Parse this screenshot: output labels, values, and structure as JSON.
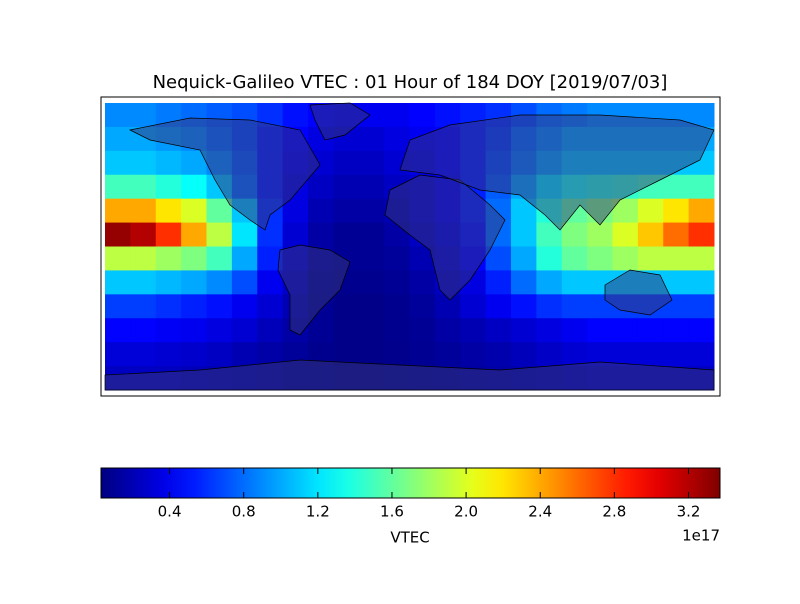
{
  "chart_data": {
    "type": "heatmap",
    "title": "Nequick-Galileo VTEC : 01 Hour of 184 DOY [2019/07/03]",
    "colorbar_label": "VTEC",
    "colorbar_offset": "1e17",
    "colormap": "jet",
    "xlim": [
      -180,
      180
    ],
    "ylim": [
      -90,
      90
    ],
    "clim": [
      0.03,
      3.37
    ],
    "cticks": [
      0.4,
      0.8,
      1.2,
      1.6,
      {
        "value": 2,
        "label": "2.0"
      },
      2.4,
      2.8,
      3.2
    ],
    "values": [
      [
        0.9,
        0.9,
        0.85,
        0.8,
        0.75,
        0.7,
        0.6,
        0.5,
        0.45,
        0.4,
        0.4,
        0.4,
        0.45,
        0.5,
        0.55,
        0.6,
        0.7,
        0.8,
        0.85,
        0.9,
        0.9,
        0.9,
        0.9,
        0.9
      ],
      [
        1.0,
        1.0,
        0.95,
        0.9,
        0.8,
        0.7,
        0.55,
        0.45,
        0.35,
        0.3,
        0.3,
        0.35,
        0.4,
        0.45,
        0.55,
        0.65,
        0.8,
        0.9,
        1.0,
        1.0,
        1.0,
        1.0,
        1.0,
        1.0
      ],
      [
        1.1,
        1.1,
        1.05,
        1.0,
        0.9,
        0.75,
        0.55,
        0.4,
        0.3,
        0.25,
        0.25,
        0.3,
        0.35,
        0.45,
        0.55,
        0.7,
        0.85,
        1.0,
        1.1,
        1.1,
        1.1,
        1.1,
        1.1,
        1.1
      ],
      [
        1.5,
        1.5,
        1.4,
        1.3,
        1.1,
        0.8,
        0.55,
        0.35,
        0.25,
        0.2,
        0.2,
        0.25,
        0.3,
        0.4,
        0.55,
        0.75,
        1.0,
        1.2,
        1.35,
        1.4,
        1.45,
        1.5,
        1.5,
        1.5
      ],
      [
        2.4,
        2.4,
        2.2,
        2.0,
        1.6,
        1.1,
        0.6,
        0.35,
        0.2,
        0.15,
        0.15,
        0.2,
        0.3,
        0.4,
        0.55,
        0.8,
        1.1,
        1.4,
        1.6,
        1.7,
        1.8,
        2.0,
        2.2,
        2.4
      ],
      [
        3.3,
        3.2,
        2.8,
        2.4,
        1.9,
        1.2,
        0.6,
        0.3,
        0.15,
        0.1,
        0.1,
        0.15,
        0.25,
        0.35,
        0.5,
        0.8,
        1.1,
        1.5,
        1.7,
        1.8,
        2.0,
        2.3,
        2.6,
        2.8
      ],
      [
        1.9,
        1.9,
        1.8,
        1.7,
        1.5,
        1.0,
        0.55,
        0.3,
        0.15,
        0.1,
        0.1,
        0.12,
        0.2,
        0.3,
        0.45,
        0.7,
        1.0,
        1.4,
        1.6,
        1.7,
        1.8,
        1.9,
        1.9,
        1.9
      ],
      [
        1.1,
        1.1,
        1.05,
        1.0,
        0.9,
        0.7,
        0.4,
        0.25,
        0.12,
        0.08,
        0.08,
        0.1,
        0.15,
        0.25,
        0.35,
        0.55,
        0.8,
        1.0,
        1.1,
        1.1,
        1.1,
        1.1,
        1.1,
        1.1
      ],
      [
        0.65,
        0.65,
        0.6,
        0.55,
        0.5,
        0.4,
        0.3,
        0.2,
        0.1,
        0.06,
        0.06,
        0.08,
        0.12,
        0.2,
        0.3,
        0.4,
        0.5,
        0.6,
        0.65,
        0.65,
        0.65,
        0.65,
        0.65,
        0.65
      ],
      [
        0.45,
        0.45,
        0.42,
        0.4,
        0.35,
        0.3,
        0.22,
        0.15,
        0.1,
        0.06,
        0.06,
        0.08,
        0.1,
        0.15,
        0.2,
        0.25,
        0.3,
        0.35,
        0.4,
        0.45,
        0.45,
        0.45,
        0.45,
        0.45
      ],
      [
        0.32,
        0.32,
        0.3,
        0.28,
        0.25,
        0.2,
        0.16,
        0.12,
        0.08,
        0.06,
        0.06,
        0.07,
        0.09,
        0.12,
        0.15,
        0.18,
        0.22,
        0.26,
        0.3,
        0.32,
        0.32,
        0.32,
        0.32,
        0.32
      ],
      [
        0.25,
        0.25,
        0.24,
        0.22,
        0.2,
        0.18,
        0.15,
        0.12,
        0.1,
        0.08,
        0.08,
        0.09,
        0.1,
        0.12,
        0.14,
        0.16,
        0.18,
        0.2,
        0.22,
        0.24,
        0.25,
        0.25,
        0.25,
        0.25
      ]
    ]
  }
}
